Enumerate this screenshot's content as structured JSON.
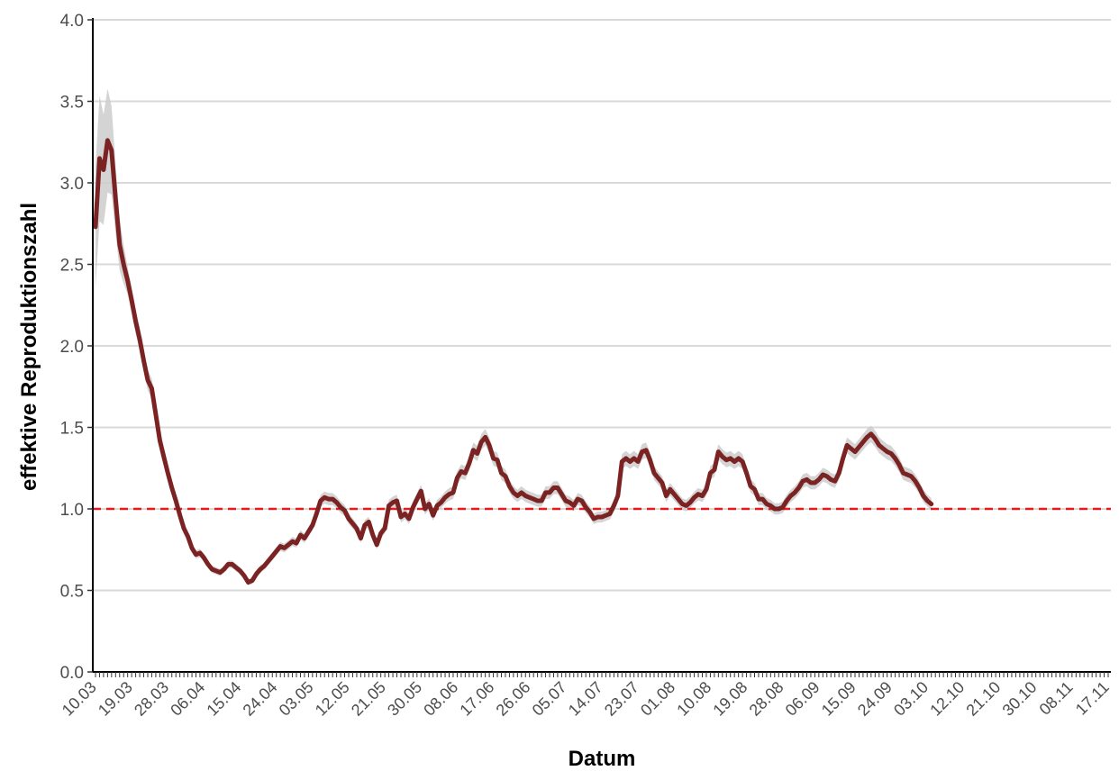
{
  "chart_data": {
    "type": "line",
    "title": "",
    "xlabel": "Datum",
    "ylabel": "effektive Reproduktionszahl",
    "ylim": [
      0,
      4
    ],
    "y_ticks": [
      "0.0",
      "0.5",
      "1.0",
      "1.5",
      "2.0",
      "2.5",
      "3.0",
      "3.5",
      "4.0"
    ],
    "x_tick_labels": [
      "10.03",
      "19.03",
      "28.03",
      "06.04",
      "15.04",
      "24.04",
      "03.05",
      "12.05",
      "21.05",
      "30.05",
      "08.06",
      "17.06",
      "26.06",
      "05.07",
      "14.07",
      "23.07",
      "01.08",
      "10.08",
      "19.08",
      "28.08",
      "06.09",
      "15.09",
      "24.09",
      "03.10",
      "12.10",
      "21.10",
      "30.10",
      "08.11",
      "17.11"
    ],
    "x_start": "10.03",
    "x_end": "17.11",
    "reference_line": {
      "y": 1.0,
      "color": "#e41a1c",
      "style": "dashed"
    },
    "grid": "horizontal",
    "colors": {
      "line": "#7b2323",
      "band": "#cccccc"
    },
    "series": [
      {
        "points": [
          [
            "10.03",
            2.73
          ],
          [
            "11.03",
            3.15
          ],
          [
            "12.03",
            3.08
          ],
          [
            "13.03",
            3.26
          ],
          [
            "14.03",
            3.2
          ],
          [
            "15.03",
            2.9
          ],
          [
            "16.03",
            2.62
          ],
          [
            "17.03",
            2.5
          ],
          [
            "18.03",
            2.4
          ],
          [
            "19.03",
            2.28
          ],
          [
            "20.03",
            2.15
          ],
          [
            "21.03",
            2.04
          ],
          [
            "22.03",
            1.91
          ],
          [
            "23.03",
            1.79
          ],
          [
            "24.03",
            1.74
          ],
          [
            "25.03",
            1.58
          ],
          [
            "26.03",
            1.42
          ],
          [
            "27.03",
            1.32
          ],
          [
            "28.03",
            1.22
          ],
          [
            "29.03",
            1.13
          ],
          [
            "30.03",
            1.05
          ],
          [
            "31.03",
            0.96
          ],
          [
            "01.04",
            0.88
          ],
          [
            "02.04",
            0.83
          ],
          [
            "03.04",
            0.76
          ],
          [
            "04.04",
            0.72
          ],
          [
            "05.04",
            0.73
          ],
          [
            "06.04",
            0.7
          ],
          [
            "07.04",
            0.66
          ],
          [
            "08.04",
            0.63
          ],
          [
            "09.04",
            0.62
          ],
          [
            "10.04",
            0.61
          ],
          [
            "11.04",
            0.63
          ],
          [
            "12.04",
            0.66
          ],
          [
            "13.04",
            0.66
          ],
          [
            "14.04",
            0.64
          ],
          [
            "15.04",
            0.62
          ],
          [
            "16.04",
            0.59
          ],
          [
            "17.04",
            0.55
          ],
          [
            "18.04",
            0.56
          ],
          [
            "19.04",
            0.6
          ],
          [
            "20.04",
            0.63
          ],
          [
            "21.04",
            0.65
          ],
          [
            "22.04",
            0.68
          ],
          [
            "23.04",
            0.71
          ],
          [
            "24.04",
            0.74
          ],
          [
            "25.04",
            0.77
          ],
          [
            "26.04",
            0.76
          ],
          [
            "27.04",
            0.78
          ],
          [
            "28.04",
            0.8
          ],
          [
            "29.04",
            0.79
          ],
          [
            "30.04",
            0.84
          ],
          [
            "01.05",
            0.82
          ],
          [
            "02.05",
            0.86
          ],
          [
            "03.05",
            0.9
          ],
          [
            "04.05",
            0.97
          ],
          [
            "05.05",
            1.05
          ],
          [
            "06.05",
            1.07
          ],
          [
            "07.05",
            1.06
          ],
          [
            "08.05",
            1.06
          ],
          [
            "09.05",
            1.04
          ],
          [
            "10.05",
            1.01
          ],
          [
            "11.05",
            0.99
          ],
          [
            "12.05",
            0.94
          ],
          [
            "13.05",
            0.91
          ],
          [
            "14.05",
            0.88
          ],
          [
            "15.05",
            0.82
          ],
          [
            "16.05",
            0.9
          ],
          [
            "17.05",
            0.92
          ],
          [
            "18.05",
            0.84
          ],
          [
            "19.05",
            0.78
          ],
          [
            "20.05",
            0.85
          ],
          [
            "21.05",
            0.88
          ],
          [
            "22.05",
            1.02
          ],
          [
            "23.05",
            1.04
          ],
          [
            "24.05",
            1.05
          ],
          [
            "25.05",
            0.95
          ],
          [
            "26.05",
            0.97
          ],
          [
            "27.05",
            0.94
          ],
          [
            "28.05",
            1.01
          ],
          [
            "29.05",
            1.06
          ],
          [
            "30.05",
            1.11
          ],
          [
            "31.05",
            1.0
          ],
          [
            "01.06",
            1.03
          ],
          [
            "02.06",
            0.96
          ],
          [
            "03.06",
            1.02
          ],
          [
            "04.06",
            1.04
          ],
          [
            "05.06",
            1.07
          ],
          [
            "06.06",
            1.09
          ],
          [
            "07.06",
            1.1
          ],
          [
            "08.06",
            1.19
          ],
          [
            "09.06",
            1.23
          ],
          [
            "10.06",
            1.22
          ],
          [
            "11.06",
            1.28
          ],
          [
            "12.06",
            1.36
          ],
          [
            "13.06",
            1.34
          ],
          [
            "14.06",
            1.41
          ],
          [
            "15.06",
            1.44
          ],
          [
            "16.06",
            1.39
          ],
          [
            "17.06",
            1.31
          ],
          [
            "18.06",
            1.3
          ],
          [
            "19.06",
            1.22
          ],
          [
            "20.06",
            1.2
          ],
          [
            "21.06",
            1.14
          ],
          [
            "22.06",
            1.1
          ],
          [
            "23.06",
            1.08
          ],
          [
            "24.06",
            1.1
          ],
          [
            "25.06",
            1.08
          ],
          [
            "26.06",
            1.07
          ],
          [
            "27.06",
            1.06
          ],
          [
            "28.06",
            1.05
          ],
          [
            "29.06",
            1.05
          ],
          [
            "30.06",
            1.1
          ],
          [
            "01.07",
            1.1
          ],
          [
            "02.07",
            1.13
          ],
          [
            "03.07",
            1.13
          ],
          [
            "04.07",
            1.09
          ],
          [
            "05.07",
            1.05
          ],
          [
            "06.07",
            1.04
          ],
          [
            "07.07",
            1.02
          ],
          [
            "08.07",
            1.06
          ],
          [
            "09.07",
            1.05
          ],
          [
            "10.07",
            1.01
          ],
          [
            "11.07",
            0.98
          ],
          [
            "12.07",
            0.94
          ],
          [
            "13.07",
            0.95
          ],
          [
            "14.07",
            0.95
          ],
          [
            "15.07",
            0.96
          ],
          [
            "16.07",
            0.97
          ],
          [
            "17.07",
            1.02
          ],
          [
            "18.07",
            1.08
          ],
          [
            "19.07",
            1.29
          ],
          [
            "20.07",
            1.31
          ],
          [
            "21.07",
            1.29
          ],
          [
            "22.07",
            1.31
          ],
          [
            "23.07",
            1.29
          ],
          [
            "24.07",
            1.35
          ],
          [
            "25.07",
            1.36
          ],
          [
            "26.07",
            1.3
          ],
          [
            "27.07",
            1.22
          ],
          [
            "28.07",
            1.19
          ],
          [
            "29.07",
            1.16
          ],
          [
            "30.07",
            1.08
          ],
          [
            "31.07",
            1.12
          ],
          [
            "01.08",
            1.09
          ],
          [
            "02.08",
            1.06
          ],
          [
            "03.08",
            1.03
          ],
          [
            "04.08",
            1.02
          ],
          [
            "05.08",
            1.04
          ],
          [
            "06.08",
            1.07
          ],
          [
            "07.08",
            1.09
          ],
          [
            "08.08",
            1.08
          ],
          [
            "09.08",
            1.12
          ],
          [
            "10.08",
            1.22
          ],
          [
            "11.08",
            1.24
          ],
          [
            "12.08",
            1.35
          ],
          [
            "13.08",
            1.32
          ],
          [
            "14.08",
            1.3
          ],
          [
            "15.08",
            1.31
          ],
          [
            "16.08",
            1.29
          ],
          [
            "17.08",
            1.31
          ],
          [
            "18.08",
            1.29
          ],
          [
            "19.08",
            1.22
          ],
          [
            "20.08",
            1.14
          ],
          [
            "21.08",
            1.12
          ],
          [
            "22.08",
            1.06
          ],
          [
            "23.08",
            1.06
          ],
          [
            "24.08",
            1.03
          ],
          [
            "25.08",
            1.02
          ],
          [
            "26.08",
            1.0
          ],
          [
            "27.08",
            1.0
          ],
          [
            "28.08",
            1.01
          ],
          [
            "29.08",
            1.05
          ],
          [
            "30.08",
            1.08
          ],
          [
            "31.08",
            1.1
          ],
          [
            "01.09",
            1.13
          ],
          [
            "02.09",
            1.17
          ],
          [
            "03.09",
            1.18
          ],
          [
            "04.09",
            1.16
          ],
          [
            "05.09",
            1.16
          ],
          [
            "06.09",
            1.18
          ],
          [
            "07.09",
            1.21
          ],
          [
            "08.09",
            1.2
          ],
          [
            "09.09",
            1.18
          ],
          [
            "10.09",
            1.17
          ],
          [
            "11.09",
            1.22
          ],
          [
            "12.09",
            1.31
          ],
          [
            "13.09",
            1.39
          ],
          [
            "14.09",
            1.37
          ],
          [
            "15.09",
            1.35
          ],
          [
            "16.09",
            1.38
          ],
          [
            "17.09",
            1.41
          ],
          [
            "18.09",
            1.44
          ],
          [
            "19.09",
            1.46
          ],
          [
            "20.09",
            1.43
          ],
          [
            "21.09",
            1.39
          ],
          [
            "22.09",
            1.37
          ],
          [
            "23.09",
            1.35
          ],
          [
            "24.09",
            1.34
          ],
          [
            "25.09",
            1.31
          ],
          [
            "26.09",
            1.27
          ],
          [
            "27.09",
            1.22
          ],
          [
            "28.09",
            1.21
          ],
          [
            "29.09",
            1.2
          ],
          [
            "30.09",
            1.17
          ],
          [
            "01.10",
            1.13
          ],
          [
            "02.10",
            1.08
          ],
          [
            "03.10",
            1.05
          ],
          [
            "04.10",
            1.03
          ]
        ]
      }
    ]
  }
}
